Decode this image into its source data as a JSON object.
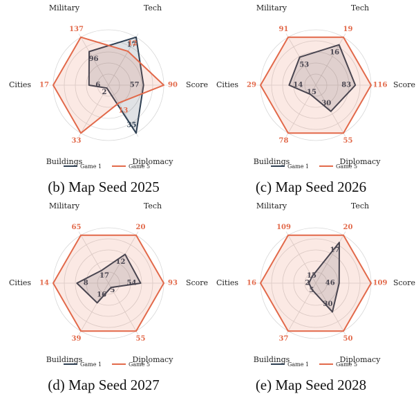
{
  "chart_data": [
    {
      "type": "radar",
      "title": "(b) Map Seed 2025",
      "categories": [
        "Score",
        "Tech",
        "Military",
        "Cities",
        "Buildings",
        "Diplomacy"
      ],
      "series": [
        {
          "name": "Game 1",
          "color": "#2e3f52",
          "values": [
            57,
            17,
            96,
            6,
            2,
            35
          ]
        },
        {
          "name": "Game 5",
          "color": "#e2694a",
          "values": [
            90,
            12,
            137,
            17,
            33,
            13
          ]
        }
      ]
    },
    {
      "type": "radar",
      "title": "(c) Map Seed 2026",
      "categories": [
        "Score",
        "Tech",
        "Military",
        "Cities",
        "Buildings",
        "Diplomacy"
      ],
      "series": [
        {
          "name": "Game 1",
          "color": "#2e3f52",
          "values": [
            83,
            16,
            53,
            14,
            15,
            30
          ]
        },
        {
          "name": "Game 5",
          "color": "#e2694a",
          "values": [
            116,
            19,
            91,
            29,
            78,
            55
          ]
        }
      ]
    },
    {
      "type": "radar",
      "title": "(d) Map Seed 2027",
      "categories": [
        "Score",
        "Tech",
        "Military",
        "Cities",
        "Buildings",
        "Diplomacy"
      ],
      "series": [
        {
          "name": "Game 1",
          "color": "#2e3f52",
          "values": [
            54,
            12,
            17,
            8,
            16,
            5
          ]
        },
        {
          "name": "Game 5",
          "color": "#e2694a",
          "values": [
            93,
            20,
            65,
            14,
            39,
            55
          ]
        }
      ]
    },
    {
      "type": "radar",
      "title": "(e) Map Seed 2028",
      "categories": [
        "Score",
        "Tech",
        "Military",
        "Cities",
        "Buildings",
        "Diplomacy"
      ],
      "series": [
        {
          "name": "Game 1",
          "color": "#2e3f52",
          "values": [
            46,
            17,
            15,
            2,
            5,
            30
          ]
        },
        {
          "name": "Game 5",
          "color": "#e2694a",
          "values": [
            109,
            20,
            109,
            16,
            37,
            50
          ]
        }
      ]
    }
  ]
}
